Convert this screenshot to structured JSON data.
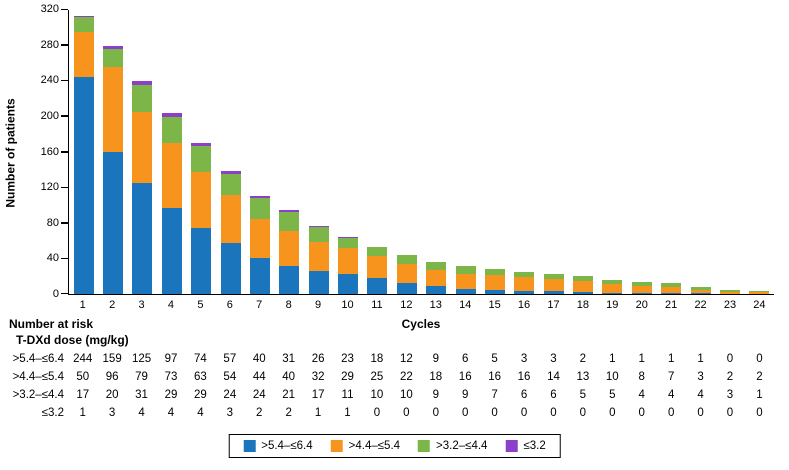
{
  "chart_data": {
    "type": "bar",
    "stacked": true,
    "title": "",
    "ylabel": "Number of patients",
    "xlabel": "Cycles",
    "ylim": [
      0,
      320
    ],
    "yticks": [
      0,
      40,
      80,
      120,
      160,
      200,
      240,
      280,
      320
    ],
    "grid": false,
    "legend_position": "bottom",
    "categories": [
      1,
      2,
      3,
      4,
      5,
      6,
      7,
      8,
      9,
      10,
      11,
      12,
      13,
      14,
      15,
      16,
      17,
      18,
      19,
      20,
      21,
      22,
      23,
      24
    ],
    "series": [
      {
        "name": ">5.4–≤6.4",
        "color": "#1B75BC",
        "values": [
          244,
          159,
          125,
          97,
          74,
          57,
          40,
          31,
          26,
          23,
          18,
          12,
          9,
          6,
          5,
          3,
          3,
          2,
          1,
          1,
          1,
          1,
          0,
          0
        ]
      },
      {
        "name": ">4.4–≤5.4",
        "color": "#F7941E",
        "values": [
          50,
          96,
          79,
          73,
          63,
          54,
          44,
          40,
          32,
          29,
          25,
          22,
          18,
          16,
          16,
          16,
          14,
          13,
          10,
          8,
          7,
          3,
          2,
          2
        ]
      },
      {
        "name": ">3.2–≤4.4",
        "color": "#7CB548",
        "values": [
          17,
          20,
          31,
          29,
          29,
          24,
          24,
          21,
          17,
          11,
          10,
          10,
          9,
          9,
          7,
          6,
          6,
          5,
          5,
          4,
          4,
          4,
          3,
          1
        ]
      },
      {
        "name": "≤3.2",
        "color": "#8C3FC9",
        "values": [
          1,
          3,
          4,
          4,
          4,
          3,
          2,
          2,
          1,
          1,
          0,
          0,
          0,
          0,
          0,
          0,
          0,
          0,
          0,
          0,
          0,
          0,
          0,
          0
        ]
      }
    ]
  },
  "risk_table": {
    "title": "Number at risk",
    "subtitle": "T-DXd dose (mg/kg)"
  }
}
